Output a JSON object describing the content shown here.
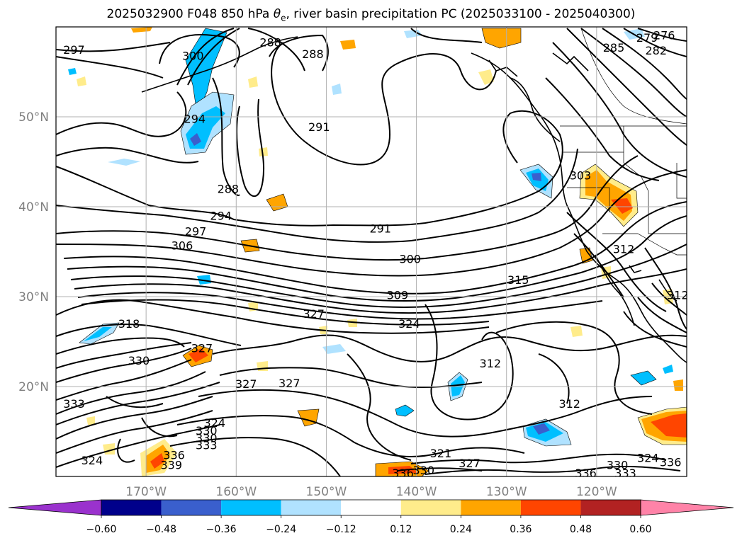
{
  "title": {
    "prefix": "2025032900 F048 850 hPa ",
    "theta": "θ",
    "sub": "e",
    "suffix": ", river basin precipitation PC (2025033100 - 2025040300)"
  },
  "chart_data": {
    "type": "contour map",
    "title": "2025032900 F048 850 hPa θe, river basin precipitation PC (2025033100 - 2025040300)",
    "lon_range": [
      -180,
      -110
    ],
    "lat_range": [
      10,
      60
    ],
    "grid": true,
    "lat_ticks": [
      {
        "value": 20,
        "label": "20°N"
      },
      {
        "value": 30,
        "label": "30°N"
      },
      {
        "value": 40,
        "label": "40°N"
      },
      {
        "value": 50,
        "label": "50°N"
      }
    ],
    "lon_ticks": [
      {
        "value": -170,
        "label": "170°W"
      },
      {
        "value": -160,
        "label": "160°W"
      },
      {
        "value": -150,
        "label": "150°W"
      },
      {
        "value": -140,
        "label": "140°W"
      },
      {
        "value": -130,
        "label": "130°W"
      },
      {
        "value": -120,
        "label": "120°W"
      }
    ],
    "colorbar": {
      "ticks": [
        "−0.60",
        "−0.48",
        "−0.36",
        "−0.24",
        "−0.12",
        "0.12",
        "0.24",
        "0.36",
        "0.48",
        "0.60"
      ],
      "colors": [
        "#9a32cd",
        "#00008b",
        "#3a5fcd",
        "#00bfff",
        "#b0e2ff",
        "#ffffff",
        "#ffec8b",
        "#ffa500",
        "#ff4500",
        "#b22222",
        "#ff83a8"
      ],
      "extend": "both"
    },
    "contour_labels": [
      {
        "text": "297",
        "lon": -178,
        "lat": 57.5
      },
      {
        "text": "300",
        "lon": -164.8,
        "lat": 56.8
      },
      {
        "text": "288",
        "lon": -156.2,
        "lat": 58.3
      },
      {
        "text": "288",
        "lon": -151.5,
        "lat": 57
      },
      {
        "text": "294",
        "lon": -164.6,
        "lat": 49.8
      },
      {
        "text": "291",
        "lon": -150.8,
        "lat": 48.9
      },
      {
        "text": "288",
        "lon": -160.9,
        "lat": 42
      },
      {
        "text": "294",
        "lon": -161.7,
        "lat": 39
      },
      {
        "text": "297",
        "lon": -164.5,
        "lat": 37.3
      },
      {
        "text": "306",
        "lon": -166,
        "lat": 35.7
      },
      {
        "text": "291",
        "lon": -144,
        "lat": 37.6
      },
      {
        "text": "300",
        "lon": -140.7,
        "lat": 34.2
      },
      {
        "text": "315",
        "lon": -128.7,
        "lat": 31.9
      },
      {
        "text": "309",
        "lon": -142.1,
        "lat": 30.2
      },
      {
        "text": "327",
        "lon": -151.4,
        "lat": 28.1
      },
      {
        "text": "324",
        "lon": -140.8,
        "lat": 27
      },
      {
        "text": "318",
        "lon": -171.9,
        "lat": 27
      },
      {
        "text": "327",
        "lon": -163.8,
        "lat": 24.3
      },
      {
        "text": "330",
        "lon": -170.8,
        "lat": 22.9
      },
      {
        "text": "312",
        "lon": -131.8,
        "lat": 22.6
      },
      {
        "text": "327",
        "lon": -154.1,
        "lat": 20.4
      },
      {
        "text": "327",
        "lon": -158.9,
        "lat": 20.3
      },
      {
        "text": "333",
        "lon": -178,
        "lat": 18.1
      },
      {
        "text": "312",
        "lon": -123,
        "lat": 18.1
      },
      {
        "text": "324",
        "lon": -162.4,
        "lat": 16
      },
      {
        "text": "330",
        "lon": -163.3,
        "lat": 15.1
      },
      {
        "text": "330",
        "lon": -163.3,
        "lat": 14.3
      },
      {
        "text": "333",
        "lon": -163.3,
        "lat": 13.5
      },
      {
        "text": "336",
        "lon": -166.9,
        "lat": 12.4
      },
      {
        "text": "339",
        "lon": -167.2,
        "lat": 11.3
      },
      {
        "text": "324",
        "lon": -176,
        "lat": 11.8
      },
      {
        "text": "321",
        "lon": -137.3,
        "lat": 12.6
      },
      {
        "text": "327",
        "lon": -134.1,
        "lat": 11.5
      },
      {
        "text": "330",
        "lon": -139.2,
        "lat": 10.7
      },
      {
        "text": "336",
        "lon": -141.5,
        "lat": 10.4
      },
      {
        "text": "336",
        "lon": -121.2,
        "lat": 10.4
      },
      {
        "text": "330",
        "lon": -117.7,
        "lat": 11.3
      },
      {
        "text": "333",
        "lon": -116.8,
        "lat": 10.4
      },
      {
        "text": "324",
        "lon": -114.3,
        "lat": 12.1
      },
      {
        "text": "336",
        "lon": -111.8,
        "lat": 11.6
      },
      {
        "text": "312",
        "lon": -117,
        "lat": 35.3
      },
      {
        "text": "303",
        "lon": -121.8,
        "lat": 43.5
      },
      {
        "text": "312",
        "lon": -111,
        "lat": 30.2
      },
      {
        "text": "285",
        "lon": -118.1,
        "lat": 57.7
      },
      {
        "text": "282",
        "lon": -113.4,
        "lat": 57.4
      },
      {
        "text": "279",
        "lon": -114.4,
        "lat": 58.8
      },
      {
        "text": "276",
        "lon": -112.5,
        "lat": 59.1
      }
    ]
  }
}
